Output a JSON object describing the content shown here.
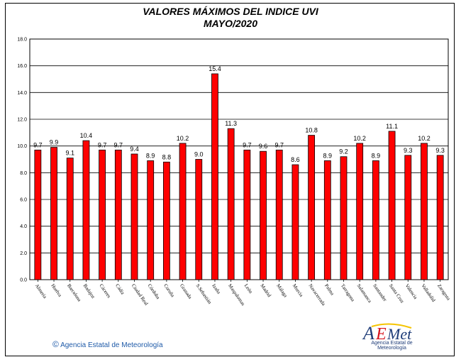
{
  "chart_data": {
    "type": "bar",
    "title": "VALORES MÁXIMOS DEL INDICE UVI",
    "subtitle": "MAYO/2020",
    "categories": [
      "Almería",
      "Huelva",
      "Barcelona",
      "Badajoz",
      "Cáceres",
      "Cádiz",
      "Ciudad Real",
      "Córdoba",
      "Coruña",
      "Granada",
      "S.Sebastián",
      "Izaña",
      "Maspalomas",
      "León",
      "Madrid",
      "Málaga",
      "Murcia",
      "Navacerrada",
      "Palma",
      "Tarragona",
      "Salamanca",
      "Santander",
      "Santa Cruz",
      "Valencia",
      "Valladolid",
      "Zaragoza"
    ],
    "values": [
      9.7,
      9.9,
      9.1,
      10.4,
      9.7,
      9.7,
      9.4,
      8.9,
      8.8,
      10.2,
      9.0,
      15.4,
      11.3,
      9.7,
      9.6,
      9.7,
      8.6,
      10.8,
      8.9,
      9.2,
      10.2,
      8.9,
      11.1,
      9.3,
      10.2,
      9.3
    ],
    "value_labels": [
      "9.7",
      "9.9",
      "9.1",
      "10.4",
      "9.7",
      "9.7",
      "9.4",
      "8.9",
      "8.8",
      "10.2",
      "9.0",
      "15.4",
      "11.3",
      "9.7",
      "9.6",
      "9.7",
      "8.6",
      "10.8",
      "8.9",
      "9.2",
      "10.2",
      "8.9",
      "11.1",
      "9.3",
      "10.2",
      "9.3"
    ],
    "ylim": [
      0,
      18
    ],
    "yticks": [
      "0.0",
      "2.0",
      "4.0",
      "6.0",
      "8.0",
      "10.0",
      "12.0",
      "14.0",
      "16.0",
      "18.0"
    ],
    "grid": true,
    "bar_color": "#ff0000",
    "plot_background": "#ffffff"
  },
  "footer": {
    "copyright_symbol": "©",
    "agency_text": "Agencia Estatal de Meteorología"
  },
  "logo": {
    "mark_text": "AEMet",
    "sub_text": "Agencia Estatal de Meteorología",
    "colors": {
      "blue": "#1e3c78",
      "red": "#d7141e",
      "yellow": "#f5c400"
    }
  }
}
